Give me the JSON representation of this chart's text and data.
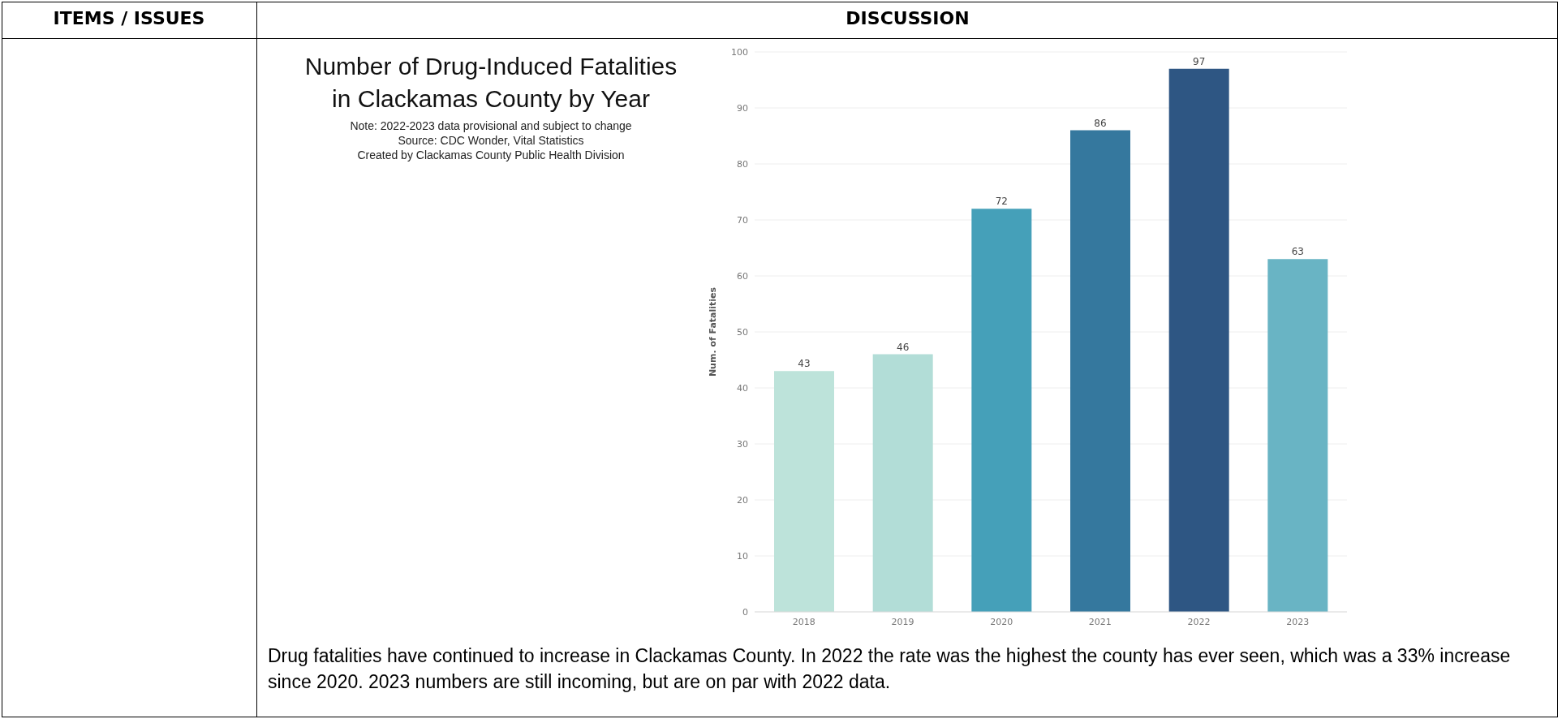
{
  "chart_data": {
    "type": "bar",
    "title": "Number of Drug-Induced Fatalities in Clackamas County by Year",
    "ylabel": "Num. of Fatalities",
    "annotations": [
      "Note: 2022-2023 data provisional and subject to change",
      "Source: CDC Wonder, Vital Statistics",
      "Created by Clackamas County Public Health Division",
      "ITEMS / ISSUES",
      "DISCUSSION",
      "Drug fatalities have continued to increase in Clackamas County. In 2022 the rate was the highest the county has ever seen, which was a 33% increase since 2020. 2023 numbers are still incoming, but are on par with 2022 data."
    ],
    "categories": [
      "2018",
      "2019",
      "2020",
      "2021",
      "2022",
      "2023"
    ],
    "values": [
      43,
      46,
      72,
      86,
      97,
      63
    ],
    "colors": [
      "#bde3da",
      "#b2ddd7",
      "#45a0b9",
      "#35789e",
      "#2e5683",
      "#69b4c4"
    ],
    "ylim": [
      0,
      100
    ],
    "yticks": [
      0,
      10,
      20,
      30,
      40,
      50,
      60,
      70,
      80,
      90,
      100
    ],
    "grid": "y",
    "data_labels": true
  }
}
